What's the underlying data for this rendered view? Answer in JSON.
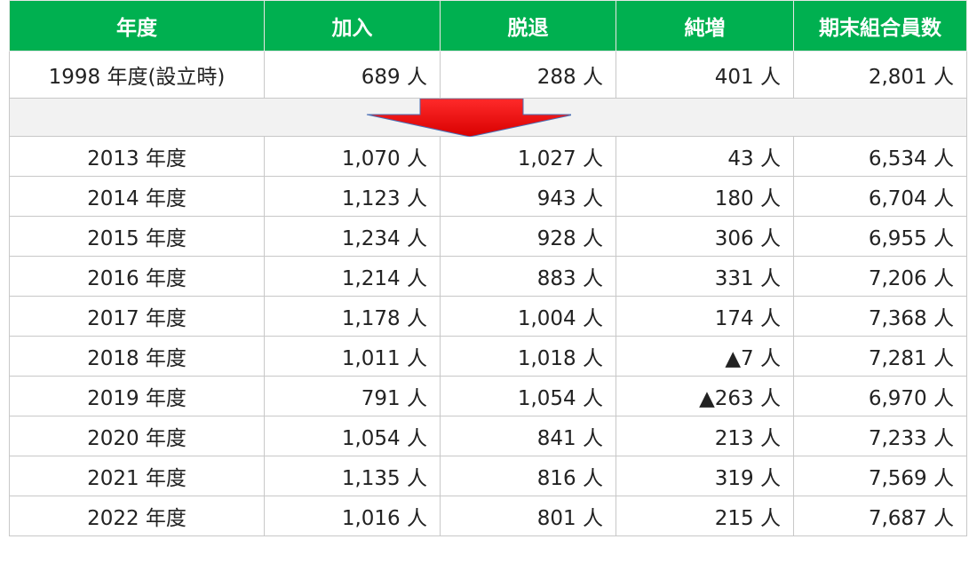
{
  "table": {
    "header": [
      "年度",
      "加入",
      "脱退",
      "純増",
      "期末組合員数"
    ],
    "first_row": [
      "1998 年度(設立時)",
      "689 人",
      "288 人",
      "401 人",
      "2,801 人"
    ],
    "rows": [
      [
        "2013 年度",
        "1,070 人",
        "1,027 人",
        "43 人",
        "6,534 人"
      ],
      [
        "2014 年度",
        "1,123 人",
        "943 人",
        "180 人",
        "6,704 人"
      ],
      [
        "2015 年度",
        "1,234 人",
        "928 人",
        "306 人",
        "6,955 人"
      ],
      [
        "2016 年度",
        "1,214 人",
        "883 人",
        "331 人",
        "7,206 人"
      ],
      [
        "2017 年度",
        "1,178 人",
        "1,004 人",
        "174 人",
        "7,368 人"
      ],
      [
        "2018 年度",
        "1,011 人",
        "1,018 人",
        "▲7 人",
        "7,281 人"
      ],
      [
        "2019 年度",
        "791 人",
        "1,054 人",
        "▲263 人",
        "6,970 人"
      ],
      [
        "2020 年度",
        "1,054 人",
        "841 人",
        "213 人",
        "7,233 人"
      ],
      [
        "2021 年度",
        "1,135 人",
        "816 人",
        "319 人",
        "7,569 人"
      ],
      [
        "2022 年度",
        "1,016 人",
        "801 人",
        "215 人",
        "7,687 人"
      ]
    ]
  }
}
